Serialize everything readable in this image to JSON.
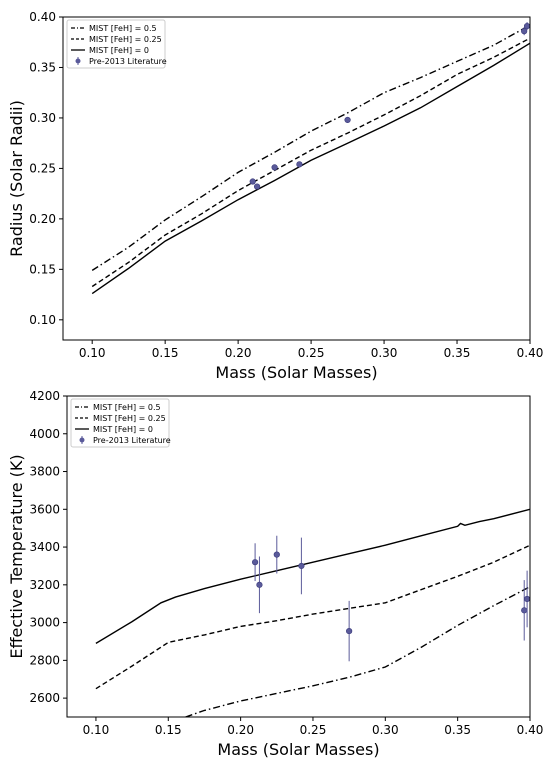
{
  "chart_data": [
    {
      "type": "line",
      "xlabel": "Mass (Solar Masses)",
      "ylabel": "Radius (Solar Radii)",
      "xlim": [
        0.08,
        0.4
      ],
      "ylim": [
        0.08,
        0.4
      ],
      "xticks": [
        0.1,
        0.15,
        0.2,
        0.25,
        0.3,
        0.35,
        0.4
      ],
      "xtick_labels": [
        "0.10",
        "0.15",
        "0.20",
        "0.25",
        "0.30",
        "0.35",
        "0.40"
      ],
      "yticks": [
        0.1,
        0.15,
        0.2,
        0.25,
        0.3,
        0.35,
        0.4
      ],
      "ytick_labels": [
        "0.10",
        "0.15",
        "0.20",
        "0.25",
        "0.30",
        "0.35",
        "0.40"
      ],
      "legend_position": "top-left",
      "series": [
        {
          "name": "MIST [FeH] = 0.5",
          "style": "dashdot",
          "color": "#000000",
          "x": [
            0.1,
            0.125,
            0.15,
            0.175,
            0.2,
            0.225,
            0.25,
            0.275,
            0.3,
            0.325,
            0.35,
            0.375,
            0.4
          ],
          "y": [
            0.149,
            0.172,
            0.199,
            0.222,
            0.246,
            0.266,
            0.287,
            0.305,
            0.325,
            0.34,
            0.356,
            0.372,
            0.392
          ]
        },
        {
          "name": "MIST [FeH] = 0.25",
          "style": "dashed",
          "color": "#000000",
          "x": [
            0.1,
            0.125,
            0.15,
            0.175,
            0.2,
            0.225,
            0.25,
            0.275,
            0.3,
            0.325,
            0.35,
            0.375,
            0.4
          ],
          "y": [
            0.133,
            0.157,
            0.184,
            0.205,
            0.228,
            0.248,
            0.268,
            0.285,
            0.303,
            0.322,
            0.343,
            0.36,
            0.379
          ]
        },
        {
          "name": "MIST [FeH] = 0",
          "style": "solid",
          "color": "#000000",
          "x": [
            0.1,
            0.125,
            0.15,
            0.175,
            0.2,
            0.225,
            0.25,
            0.275,
            0.3,
            0.325,
            0.35,
            0.375,
            0.4
          ],
          "y": [
            0.126,
            0.151,
            0.178,
            0.198,
            0.219,
            0.238,
            0.258,
            0.275,
            0.292,
            0.31,
            0.331,
            0.352,
            0.374
          ]
        }
      ],
      "points": {
        "name": "Pre-2013 Literature",
        "color": "#5a5a9a",
        "x": [
          0.21,
          0.213,
          0.225,
          0.242,
          0.275,
          0.396,
          0.398
        ],
        "y": [
          0.237,
          0.232,
          0.251,
          0.254,
          0.298,
          0.386,
          0.391
        ],
        "yerr": [
          0.0,
          0.0,
          0.0,
          0.0,
          0.003,
          0.004,
          0.004
        ]
      }
    },
    {
      "type": "line",
      "xlabel": "Mass (Solar Masses)",
      "ylabel": "Effective Temperature (K)",
      "xlim": [
        0.08,
        0.4
      ],
      "ylim": [
        2500,
        4200
      ],
      "xticks": [
        0.1,
        0.15,
        0.2,
        0.25,
        0.3,
        0.35,
        0.4
      ],
      "xtick_labels": [
        "0.10",
        "0.15",
        "0.20",
        "0.25",
        "0.30",
        "0.35",
        "0.40"
      ],
      "yticks": [
        2600,
        2800,
        3000,
        3200,
        3400,
        3600,
        3800,
        4000,
        4200
      ],
      "ytick_labels": [
        "2600",
        "2800",
        "3000",
        "3200",
        "3400",
        "3600",
        "3800",
        "4000",
        "4200"
      ],
      "legend_position": "top-left",
      "series": [
        {
          "name": "MIST [FeH] = 0.5",
          "style": "dashdot",
          "color": "#000000",
          "x": [
            0.162,
            0.175,
            0.2,
            0.225,
            0.25,
            0.275,
            0.3,
            0.325,
            0.35,
            0.375,
            0.4
          ],
          "y": [
            2500,
            2535,
            2585,
            2625,
            2665,
            2710,
            2765,
            2870,
            2985,
            3090,
            3190
          ]
        },
        {
          "name": "MIST [FeH] = 0.25",
          "style": "dashed",
          "color": "#000000",
          "x": [
            0.1,
            0.125,
            0.15,
            0.175,
            0.2,
            0.225,
            0.25,
            0.275,
            0.3,
            0.325,
            0.35,
            0.375,
            0.4
          ],
          "y": [
            2650,
            2770,
            2895,
            2935,
            2980,
            3010,
            3045,
            3075,
            3105,
            3175,
            3245,
            3320,
            3410
          ]
        },
        {
          "name": "MIST [FeH] = 0",
          "style": "solid",
          "color": "#000000",
          "x": [
            0.1,
            0.125,
            0.145,
            0.155,
            0.175,
            0.2,
            0.225,
            0.25,
            0.275,
            0.3,
            0.325,
            0.35,
            0.352,
            0.355,
            0.365,
            0.375,
            0.4
          ],
          "y": [
            2890,
            3005,
            3105,
            3135,
            3180,
            3230,
            3275,
            3320,
            3365,
            3410,
            3460,
            3510,
            3525,
            3515,
            3535,
            3550,
            3600
          ]
        }
      ],
      "points": {
        "name": "Pre-2013 Literature",
        "color": "#5a5a9a",
        "x": [
          0.21,
          0.213,
          0.225,
          0.242,
          0.275,
          0.396,
          0.398
        ],
        "y": [
          3320,
          3200,
          3360,
          3300,
          2955,
          3065,
          3125
        ],
        "yerr": [
          100,
          150,
          100,
          150,
          160,
          160,
          150
        ]
      }
    }
  ]
}
